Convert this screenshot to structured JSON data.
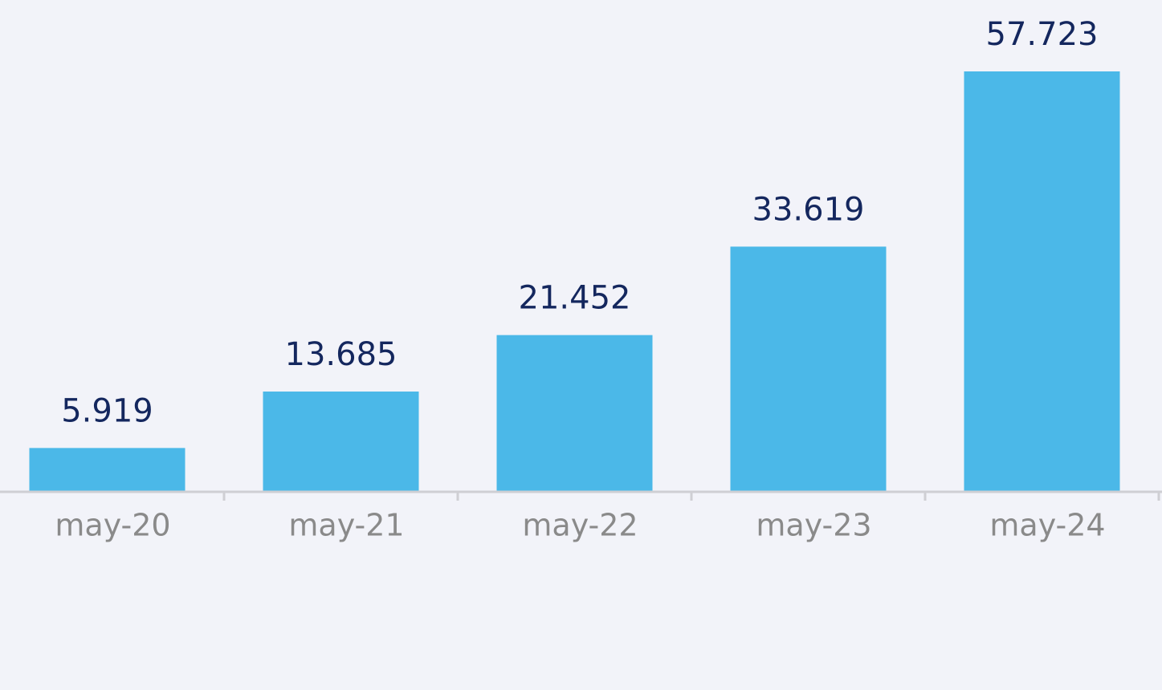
{
  "chart_data": {
    "type": "bar",
    "categories": [
      "may-20",
      "may-21",
      "may-22",
      "may-23",
      "may-24"
    ],
    "values": [
      5.919,
      13.685,
      21.452,
      33.619,
      57.723
    ],
    "color": "#4bb8e8"
  }
}
